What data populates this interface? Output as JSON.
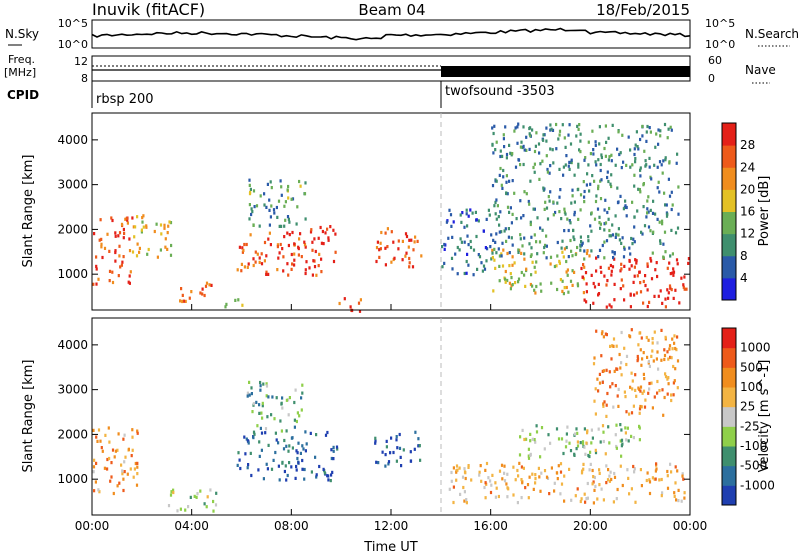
{
  "header": {
    "station": "Inuvik (fitACF)",
    "beam": "Beam 04",
    "date": "18/Feb/2015"
  },
  "side_labels": {
    "nsky": "N.Sky",
    "freq_line1": "Freq.",
    "freq_line2": "[MHz]",
    "cpid": "CPID",
    "nsearch": "N.Search",
    "nave": "Nave"
  },
  "tick_labels": {
    "sky_top": "10^5",
    "sky_bottom": "10^0",
    "search_top": "10^5",
    "search_bottom": "10^0",
    "freq_top": "12",
    "freq_bottom": "8",
    "nave_top": "60",
    "nave_bottom": "0"
  },
  "cpid_segments": [
    {
      "label": "rbsp 200",
      "start": "00:00"
    },
    {
      "label": "twofsound -3503",
      "start": "14:00"
    }
  ],
  "chart_data": [
    {
      "type": "heatmap",
      "title": "Power",
      "xlabel": "Time UT",
      "ylabel": "Slant Range [km]",
      "x_range": [
        "00:00",
        "24:00"
      ],
      "x_ticks": [
        "00:00",
        "04:00",
        "08:00",
        "12:00",
        "16:00",
        "20:00",
        "00:00"
      ],
      "y_range": [
        200,
        4600
      ],
      "y_ticks": [
        1000,
        2000,
        3000,
        4000
      ],
      "colorbar": {
        "label": "Power [dB]",
        "ticks": [
          "4",
          "8",
          "12",
          "16",
          "20",
          "24",
          "28"
        ],
        "colors": [
          "#1f1fe0",
          "#2a5aa8",
          "#3f8f6e",
          "#6aae55",
          "#e3c125",
          "#f08d1e",
          "#ee5a1a",
          "#e42018"
        ]
      },
      "regions": [
        {
          "t0": 0.0,
          "t1": 1.6,
          "r0": 800,
          "r1": 2300,
          "level": 0.85
        },
        {
          "t0": 1.6,
          "t1": 3.2,
          "r0": 1400,
          "r1": 2400,
          "level": 0.55
        },
        {
          "t0": 3.4,
          "t1": 4.8,
          "r0": 400,
          "r1": 900,
          "level": 0.8
        },
        {
          "t0": 4.8,
          "t1": 6.0,
          "r0": 300,
          "r1": 500,
          "level": 0.5
        },
        {
          "t0": 5.8,
          "t1": 9.8,
          "r0": 1000,
          "r1": 2100,
          "level": 0.85
        },
        {
          "t0": 6.2,
          "t1": 8.6,
          "r0": 2100,
          "r1": 3200,
          "level": 0.35
        },
        {
          "t0": 9.6,
          "t1": 10.8,
          "r0": 200,
          "r1": 500,
          "level": 0.9
        },
        {
          "t0": 11.3,
          "t1": 13.2,
          "r0": 1200,
          "r1": 2100,
          "level": 0.8
        },
        {
          "t0": 14.0,
          "t1": 16.0,
          "r0": 1000,
          "r1": 2500,
          "level": 0.2
        },
        {
          "t0": 16.0,
          "t1": 20.0,
          "r0": 600,
          "r1": 1600,
          "level": 0.55
        },
        {
          "t0": 19.5,
          "t1": 24.0,
          "r0": 300,
          "r1": 1400,
          "level": 0.95
        },
        {
          "t0": 16.0,
          "t1": 23.5,
          "r0": 1400,
          "r1": 4400,
          "level": 0.3
        }
      ]
    },
    {
      "type": "heatmap",
      "title": "Velocity",
      "xlabel": "Time UT",
      "ylabel": "Slant Range [km]",
      "x_range": [
        "00:00",
        "24:00"
      ],
      "x_ticks": [
        "00:00",
        "04:00",
        "08:00",
        "12:00",
        "16:00",
        "20:00",
        "00:00"
      ],
      "y_range": [
        200,
        4600
      ],
      "y_ticks": [
        1000,
        2000,
        3000,
        4000
      ],
      "colorbar": {
        "label": "Velocity [m s^-1]",
        "ticks": [
          "1000",
          "500",
          "100",
          "25",
          "-25",
          "-100",
          "-500",
          "-1000"
        ],
        "colors": [
          "#1f3fb0",
          "#2c6f9e",
          "#3f8f6e",
          "#8fcf4a",
          "#c8c8c8",
          "#f3b443",
          "#f08d1e",
          "#ee5a1a",
          "#e42018"
        ]
      },
      "regions": [
        {
          "t0": 0.0,
          "t1": 1.8,
          "r0": 700,
          "r1": 2200,
          "level": 0.7
        },
        {
          "t0": 3.0,
          "t1": 5.0,
          "r0": 300,
          "r1": 800,
          "level": 0.42
        },
        {
          "t0": 5.8,
          "t1": 9.8,
          "r0": 1000,
          "r1": 2100,
          "level": 0.15
        },
        {
          "t0": 6.2,
          "t1": 8.4,
          "r0": 2100,
          "r1": 3200,
          "level": 0.3
        },
        {
          "t0": 11.3,
          "t1": 13.2,
          "r0": 1300,
          "r1": 2100,
          "level": 0.15
        },
        {
          "t0": 14.3,
          "t1": 23.8,
          "r0": 500,
          "r1": 1400,
          "level": 0.62
        },
        {
          "t0": 17.0,
          "t1": 22.0,
          "r0": 1500,
          "r1": 2300,
          "level": 0.42
        },
        {
          "t0": 20.0,
          "t1": 23.5,
          "r0": 2400,
          "r1": 4400,
          "level": 0.7
        }
      ]
    }
  ]
}
